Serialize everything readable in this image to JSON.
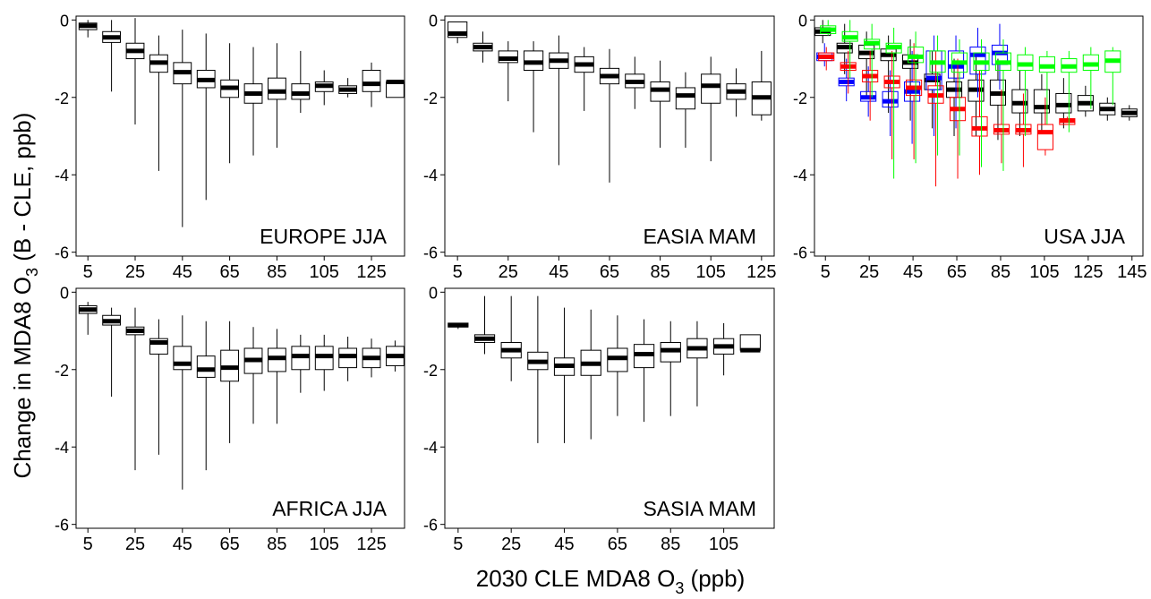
{
  "y_label": [
    "Change in MDA8 O",
    "3",
    " (B - CLE, ppb)"
  ],
  "x_label": [
    "2030 CLE MDA8 O",
    "3",
    " (ppb)"
  ],
  "chart_data": [
    {
      "type": "box",
      "title": "EUROPE JJA",
      "x": [
        5,
        15,
        25,
        35,
        45,
        55,
        65,
        75,
        85,
        95,
        105,
        115,
        125,
        135
      ],
      "xlim": [
        0,
        139
      ],
      "xticks": [
        5,
        25,
        45,
        65,
        85,
        105,
        125
      ],
      "ylim": [
        -6.1,
        0.1
      ],
      "yticks": [
        0,
        -2,
        -4,
        -6
      ],
      "series": [
        {
          "color": "#000000",
          "median": [
            -0.15,
            -0.45,
            -0.8,
            -1.1,
            -1.35,
            -1.55,
            -1.75,
            -1.9,
            -1.85,
            -1.9,
            -1.7,
            -1.8,
            -1.65,
            -1.6
          ],
          "q1": [
            -0.25,
            -0.58,
            -1.0,
            -1.35,
            -1.65,
            -1.75,
            -2.0,
            -2.15,
            -2.05,
            -2.05,
            -1.85,
            -1.9,
            -1.85,
            -2.0
          ],
          "q3": [
            -0.08,
            -0.3,
            -0.6,
            -0.9,
            -1.1,
            -1.3,
            -1.55,
            -1.65,
            -1.5,
            -1.65,
            -1.6,
            -1.7,
            -1.3,
            -1.6
          ],
          "whislo": [
            -0.45,
            -1.85,
            -2.7,
            -3.9,
            -5.35,
            -4.65,
            -3.7,
            -3.5,
            -3.3,
            -2.4,
            -2.2,
            -2.0,
            -2.25,
            -2.0
          ],
          "whishi": [
            0.0,
            0.0,
            0.05,
            -0.4,
            -0.25,
            -0.35,
            -0.6,
            -0.7,
            -0.6,
            -0.8,
            -1.3,
            -1.5,
            -1.1,
            -1.6
          ]
        }
      ]
    },
    {
      "type": "box",
      "title": "EASIA MAM",
      "x": [
        5,
        15,
        25,
        35,
        45,
        55,
        65,
        75,
        85,
        95,
        105,
        115,
        125
      ],
      "xlim": [
        0,
        130
      ],
      "xticks": [
        5,
        25,
        45,
        65,
        85,
        105,
        125
      ],
      "ylim": [
        -6.1,
        0.1
      ],
      "yticks": [
        0,
        -2,
        -4,
        -6
      ],
      "series": [
        {
          "color": "#000000",
          "median": [
            -0.35,
            -0.7,
            -1.0,
            -1.1,
            -1.05,
            -1.15,
            -1.45,
            -1.6,
            -1.8,
            -1.95,
            -1.7,
            -1.85,
            -2.0
          ],
          "q1": [
            -0.45,
            -0.8,
            -1.1,
            -1.3,
            -1.25,
            -1.35,
            -1.65,
            -1.75,
            -2.1,
            -2.3,
            -2.15,
            -2.05,
            -2.45
          ],
          "q3": [
            -0.05,
            -0.6,
            -0.8,
            -0.8,
            -0.85,
            -0.95,
            -1.25,
            -1.4,
            -1.6,
            -1.75,
            -1.4,
            -1.65,
            -1.6
          ],
          "whislo": [
            -0.6,
            -1.1,
            -2.1,
            -2.9,
            -3.75,
            -2.35,
            -4.2,
            -2.3,
            -3.3,
            -3.3,
            -3.65,
            -2.5,
            -2.6
          ],
          "whishi": [
            -0.05,
            -0.3,
            -0.55,
            -0.55,
            -0.4,
            -0.7,
            -0.75,
            -0.95,
            -1.05,
            -1.35,
            -0.95,
            -1.25,
            -0.8
          ]
        }
      ]
    },
    {
      "type": "box",
      "title": "USA JJA",
      "x": [
        5,
        15,
        25,
        35,
        45,
        55,
        65,
        75,
        85,
        95,
        105,
        115,
        125,
        135,
        145
      ],
      "xlim": [
        0,
        150
      ],
      "xticks": [
        5,
        25,
        45,
        65,
        85,
        105,
        125,
        145
      ],
      "ylim": [
        -6.1,
        0.1
      ],
      "yticks": [
        0,
        -2,
        -4,
        -6
      ],
      "series": [
        {
          "color": "#000000",
          "median": [
            -0.3,
            -0.7,
            -0.85,
            -0.9,
            -1.1,
            -1.55,
            -1.8,
            -1.8,
            -1.9,
            -2.15,
            -2.25,
            -2.2,
            -2.15,
            -2.3,
            -2.4
          ],
          "q1": [
            -0.4,
            -0.85,
            -1.0,
            -1.05,
            -1.25,
            -1.8,
            -2.0,
            -2.1,
            -2.2,
            -2.4,
            -2.4,
            -2.4,
            -2.35,
            -2.45,
            -2.5
          ],
          "q3": [
            -0.2,
            -0.6,
            -0.65,
            -0.75,
            -0.9,
            -1.4,
            -1.6,
            -1.55,
            -1.55,
            -1.8,
            -1.8,
            -1.9,
            -1.95,
            -2.15,
            -2.3
          ],
          "whislo": [
            -0.6,
            -1.4,
            -2.0,
            -2.4,
            -2.6,
            -2.8,
            -3.0,
            -3.0,
            -3.1,
            -3.0,
            -2.9,
            -2.8,
            -2.5,
            -2.6,
            -2.6
          ],
          "whishi": [
            0.0,
            -0.1,
            -0.3,
            -0.4,
            -0.5,
            -0.8,
            -1.0,
            -0.9,
            -1.0,
            -1.3,
            -1.4,
            -1.5,
            -1.7,
            -2.0,
            -2.2
          ]
        },
        {
          "color": "#0000ff",
          "median": [
            -0.95,
            -1.6,
            -2.0,
            -2.1,
            -1.85,
            -1.5,
            -1.2,
            -0.9,
            -0.85,
            null,
            null,
            null,
            null,
            null,
            null
          ],
          "q1": [
            -1.05,
            -1.7,
            -2.1,
            -2.25,
            -2.1,
            -1.8,
            -1.5,
            -1.4,
            -1.15,
            null,
            null,
            null,
            null,
            null,
            null
          ],
          "q3": [
            -0.85,
            -1.5,
            -1.85,
            -1.85,
            -1.6,
            -0.8,
            -0.8,
            -0.7,
            -0.65,
            null,
            null,
            null,
            null,
            null,
            null
          ],
          "whislo": [
            -1.2,
            -2.1,
            -2.5,
            -3.0,
            -3.2,
            -3.0,
            -2.8,
            -2.0,
            -1.8,
            null,
            null,
            null,
            null,
            null,
            null
          ],
          "whishi": [
            -0.6,
            -1.0,
            -1.2,
            -1.3,
            -0.8,
            -0.4,
            -0.4,
            -0.2,
            -0.1,
            null,
            null,
            null,
            null,
            null,
            null
          ]
        },
        {
          "color": "#ff0000",
          "median": [
            -0.95,
            -1.2,
            -1.45,
            -1.6,
            -1.75,
            -1.95,
            -2.3,
            -2.8,
            -2.85,
            -2.85,
            -2.9,
            -2.6,
            null,
            null,
            null
          ],
          "q1": [
            -1.05,
            -1.3,
            -1.6,
            -1.75,
            -1.95,
            -2.15,
            -2.6,
            -3.0,
            -2.95,
            -2.95,
            -3.35,
            -2.7,
            null,
            null,
            null
          ],
          "q3": [
            -0.85,
            -1.1,
            -1.3,
            -1.45,
            -1.55,
            -1.7,
            -2.0,
            -2.5,
            -2.7,
            -2.7,
            -2.7,
            -2.55,
            null,
            null,
            null
          ],
          "whislo": [
            -1.3,
            -1.9,
            -2.6,
            -3.6,
            -3.6,
            -4.3,
            -4.1,
            -4.0,
            -3.7,
            -3.8,
            -3.5,
            -2.7,
            null,
            null,
            null
          ],
          "whishi": [
            -0.7,
            -0.8,
            -0.8,
            -0.8,
            -0.6,
            -0.8,
            -1.0,
            -1.3,
            -1.8,
            -1.9,
            -2.0,
            -2.5,
            null,
            null,
            null
          ]
        },
        {
          "color": "#00ff00",
          "median": [
            -0.25,
            -0.45,
            -0.6,
            -0.7,
            -0.95,
            -1.1,
            -1.1,
            -1.1,
            -1.1,
            -1.15,
            -1.2,
            -1.2,
            -1.15,
            -1.05,
            null
          ],
          "q1": [
            -0.35,
            -0.55,
            -0.75,
            -0.85,
            -1.1,
            -1.35,
            -1.35,
            -1.3,
            -1.3,
            -1.3,
            -1.35,
            -1.35,
            -1.3,
            -1.35,
            null
          ],
          "q3": [
            -0.15,
            -0.3,
            -0.5,
            -0.6,
            -0.7,
            -0.8,
            -0.85,
            -0.85,
            -0.85,
            -0.9,
            -0.95,
            -1.0,
            -0.9,
            -0.8,
            null
          ],
          "whislo": [
            -0.4,
            -1.5,
            -2.0,
            -4.1,
            -3.7,
            -3.5,
            -3.5,
            -3.8,
            -3.9,
            -3.0,
            -2.7,
            -2.9,
            -2.3,
            -2.2,
            null
          ],
          "whishi": [
            0.0,
            0.0,
            -0.1,
            -0.2,
            -0.3,
            -0.4,
            -0.5,
            -0.5,
            -0.5,
            -0.7,
            -0.8,
            -0.8,
            -0.7,
            -0.7,
            null
          ]
        }
      ]
    },
    {
      "type": "box",
      "title": "AFRICA JJA",
      "x": [
        5,
        15,
        25,
        35,
        45,
        55,
        65,
        75,
        85,
        95,
        105,
        115,
        125,
        135
      ],
      "xlim": [
        0,
        139
      ],
      "xticks": [
        5,
        25,
        45,
        65,
        85,
        105,
        125
      ],
      "ylim": [
        -6.1,
        0.1
      ],
      "yticks": [
        0,
        -2,
        -4,
        -6
      ],
      "series": [
        {
          "color": "#000000",
          "median": [
            -0.45,
            -0.75,
            -1.0,
            -1.3,
            -1.85,
            -2.0,
            -1.95,
            -1.75,
            -1.7,
            -1.65,
            -1.65,
            -1.65,
            -1.7,
            -1.65
          ],
          "q1": [
            -0.55,
            -0.85,
            -1.1,
            -1.6,
            -2.0,
            -2.2,
            -2.3,
            -2.1,
            -2.05,
            -2.0,
            -2.0,
            -1.95,
            -1.95,
            -1.9
          ],
          "q3": [
            -0.35,
            -0.6,
            -0.9,
            -1.2,
            -1.4,
            -1.65,
            -1.5,
            -1.45,
            -1.45,
            -1.4,
            -1.4,
            -1.45,
            -1.45,
            -1.4
          ],
          "whislo": [
            -1.1,
            -2.7,
            -4.6,
            -4.2,
            -5.1,
            -4.6,
            -3.9,
            -3.4,
            -3.4,
            -2.6,
            -2.55,
            -2.3,
            -2.2,
            -2.05
          ],
          "whishi": [
            -0.25,
            -0.4,
            -0.4,
            -0.7,
            -0.6,
            -0.75,
            -0.75,
            -0.9,
            -0.95,
            -1.1,
            -1.1,
            -1.15,
            -1.2,
            -1.25
          ]
        }
      ]
    },
    {
      "type": "box",
      "title": "SASIA MAM",
      "x": [
        5,
        15,
        25,
        35,
        45,
        55,
        65,
        75,
        85,
        95,
        105,
        115
      ],
      "xlim": [
        0,
        124
      ],
      "xticks": [
        5,
        25,
        45,
        65,
        85,
        105
      ],
      "ylim": [
        -6.1,
        0.1
      ],
      "yticks": [
        0,
        -2,
        -4,
        -6
      ],
      "series": [
        {
          "color": "#000000",
          "median": [
            -0.85,
            -1.2,
            -1.5,
            -1.8,
            -1.9,
            -1.85,
            -1.7,
            -1.6,
            -1.5,
            -1.45,
            -1.4,
            -1.5
          ],
          "q1": [
            -0.9,
            -1.3,
            -1.7,
            -2.0,
            -2.15,
            -2.15,
            -2.05,
            -1.95,
            -1.8,
            -1.7,
            -1.6,
            -1.5
          ],
          "q3": [
            -0.8,
            -1.1,
            -1.3,
            -1.55,
            -1.7,
            -1.5,
            -1.45,
            -1.35,
            -1.3,
            -1.2,
            -1.2,
            -1.1
          ],
          "whislo": [
            -0.95,
            -1.6,
            -2.3,
            -3.9,
            -3.9,
            -3.8,
            -3.2,
            -3.35,
            -3.2,
            -2.95,
            -2.15,
            -1.5
          ],
          "whishi": [
            -0.8,
            -0.1,
            -0.1,
            -0.1,
            -0.4,
            -0.45,
            -0.6,
            -0.7,
            -0.75,
            -0.75,
            -0.8,
            -1.1
          ]
        }
      ]
    }
  ]
}
